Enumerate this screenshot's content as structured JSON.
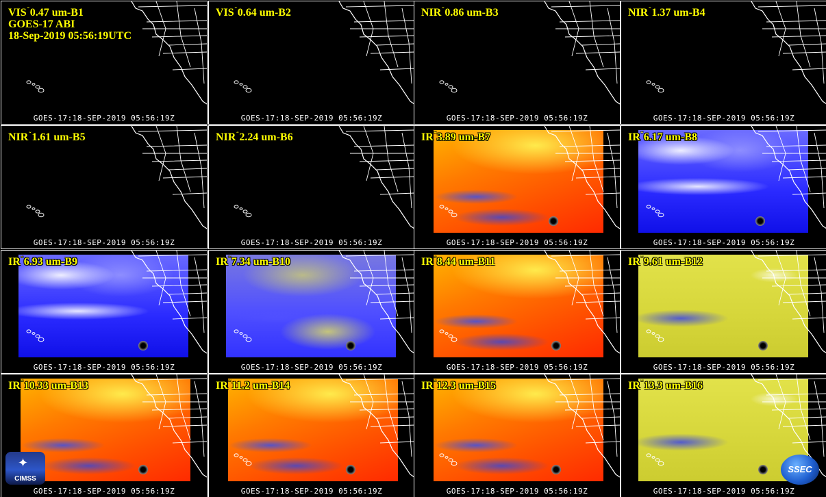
{
  "header_lines": [
    "GOES-17 ABI",
    "18-Sep-2019 05:56:19UTC"
  ],
  "timestamp_footer": "GOES-17:18-SEP-2019  05:56:19Z",
  "panels": [
    {
      "label": "VIS 0.47 um-B1",
      "prefix": "VIS",
      "wavelength": "0.47 um-B1",
      "style": "black"
    },
    {
      "label": "VIS 0.64 um-B2",
      "prefix": "VIS",
      "wavelength": "0.64 um-B2",
      "style": "black"
    },
    {
      "label": "NIR 0.86 um-B3",
      "prefix": "NIR",
      "wavelength": "0.86 um-B3",
      "style": "black"
    },
    {
      "label": "NIR 1.37 um-B4",
      "prefix": "NIR",
      "wavelength": "1.37 um-B4",
      "style": "black"
    },
    {
      "label": "NIR 1.61 um-B5",
      "prefix": "NIR",
      "wavelength": "1.61 um-B5",
      "style": "black"
    },
    {
      "label": "NIR 2.24 um-B6",
      "prefix": "NIR",
      "wavelength": "2.24 um-B6",
      "style": "black"
    },
    {
      "label": "IR 3.89 um-B7",
      "prefix": "IR",
      "wavelength": "3.89 um-B7",
      "style": "ir-warm"
    },
    {
      "label": "IR 6.17 um-B8",
      "prefix": "IR",
      "wavelength": "6.17 um-B8",
      "style": "ir-wv"
    },
    {
      "label": "IR 6.93 um-B9",
      "prefix": "IR",
      "wavelength": "6.93 um-B9",
      "style": "ir-wv"
    },
    {
      "label": "IR 7.34 um-B10",
      "prefix": "IR",
      "wavelength": "7.34 um-B10",
      "style": "ir-b10"
    },
    {
      "label": "IR 8.44 um-B11",
      "prefix": "IR",
      "wavelength": "8.44 um-B11",
      "style": "ir-warm"
    },
    {
      "label": "IR 9.61 um-B12",
      "prefix": "IR",
      "wavelength": "9.61 um-B12",
      "style": "ir-yellow"
    },
    {
      "label": "IR 10.33 um-B13",
      "prefix": "IR",
      "wavelength": "10.33 um-B13",
      "style": "ir-warm"
    },
    {
      "label": "IR 11.2 um-B14",
      "prefix": "IR",
      "wavelength": "11.2 um-B14",
      "style": "ir-warm"
    },
    {
      "label": "IR 12.3 um-B15",
      "prefix": "IR",
      "wavelength": "12.3 um-B15",
      "style": "ir-warm"
    },
    {
      "label": "IR 13.3 um-B16",
      "prefix": "IR",
      "wavelength": "13.3 um-B16",
      "style": "ir-yellow"
    }
  ],
  "logos": {
    "left": "CIMSS",
    "right": "SSEC"
  },
  "colors": {
    "label": "#ffff00",
    "footer": "#ffffff",
    "coastline": "#ffffff"
  }
}
